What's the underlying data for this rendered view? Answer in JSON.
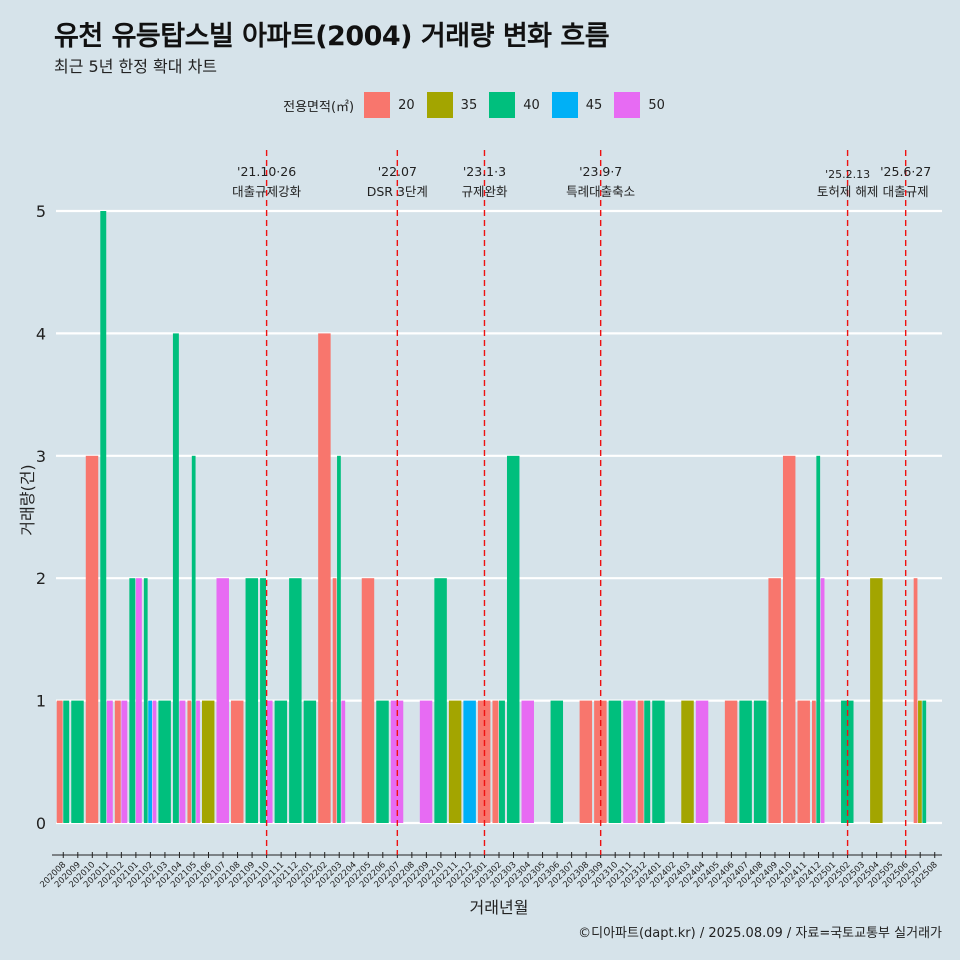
{
  "title": "유천 유등탑스빌 아파트(2004) 거래량 변화 흐름",
  "subtitle": "최근 5년 한정 확대 차트",
  "caption": "©디아파트(dapt.kr) / 2025.08.09 / 자료=국토교통부 실거래가",
  "legend": {
    "title": "전용면적(㎡)",
    "items": [
      {
        "label": "20",
        "color": "#f8766d"
      },
      {
        "label": "35",
        "color": "#a3a500"
      },
      {
        "label": "40",
        "color": "#00bf7d"
      },
      {
        "label": "45",
        "color": "#00b0f6"
      },
      {
        "label": "50",
        "color": "#e76bf3"
      }
    ]
  },
  "chart_data": {
    "type": "bar",
    "xlabel": "거래년월",
    "ylabel": "거래량(건)",
    "ylim": [
      0,
      5
    ],
    "yticks": [
      0,
      1,
      2,
      3,
      4,
      5
    ],
    "grid": true,
    "legend_position": "top",
    "categories": [
      "202008",
      "202009",
      "202010",
      "202011",
      "202012",
      "202101",
      "202102",
      "202103",
      "202104",
      "202105",
      "202106",
      "202107",
      "202108",
      "202109",
      "202110",
      "202111",
      "202112",
      "202201",
      "202202",
      "202203",
      "202204",
      "202205",
      "202206",
      "202207",
      "202208",
      "202209",
      "202210",
      "202211",
      "202212",
      "202301",
      "202302",
      "202303",
      "202304",
      "202305",
      "202306",
      "202307",
      "202308",
      "202309",
      "202310",
      "202311",
      "202312",
      "202401",
      "202402",
      "202403",
      "202404",
      "202405",
      "202406",
      "202407",
      "202408",
      "202409",
      "202410",
      "202411",
      "202412",
      "202501",
      "202502",
      "202503",
      "202504",
      "202505",
      "202506",
      "202507",
      "202508"
    ],
    "series": [
      {
        "name": "20",
        "color": "#f8766d",
        "values": {
          "202008": 1,
          "202010": 3,
          "202012": 1,
          "202105": 1,
          "202108": 1,
          "202202": 4,
          "202203": 2,
          "202205": 2,
          "202301": 1,
          "202302": 1,
          "202308": 1,
          "202309": 1,
          "202312": 1,
          "202406": 1,
          "202409": 2,
          "202410": 3,
          "202411": 1,
          "202412": 1,
          "202507": 2
        }
      },
      {
        "name": "35",
        "color": "#a3a500",
        "values": {
          "202106": 1,
          "202211": 1,
          "202403": 1,
          "202504": 2,
          "202507": 1
        }
      },
      {
        "name": "40",
        "color": "#00bf7d",
        "values": {
          "202008": 1,
          "202009": 1,
          "202011": 5,
          "202101": 2,
          "202102": 2,
          "202103": 1,
          "202104": 4,
          "202105": 3,
          "202109": 2,
          "202110": 2,
          "202111": 1,
          "202112": 2,
          "202201": 1,
          "202203": 3,
          "202206": 1,
          "202210": 2,
          "202302": 1,
          "202303": 3,
          "202306": 1,
          "202310": 1,
          "202312": 1,
          "202401": 1,
          "202407": 1,
          "202408": 1,
          "202412": 3,
          "202502": 1,
          "202507": 1
        }
      },
      {
        "name": "45",
        "color": "#00b0f6",
        "values": {
          "202102": 1,
          "202212": 1
        }
      },
      {
        "name": "50",
        "color": "#e76bf3",
        "values": {
          "202011": 1,
          "202012": 1,
          "202101": 2,
          "202102": 1,
          "202104": 1,
          "202105": 1,
          "202107": 2,
          "202110": 1,
          "202203": 1,
          "202207": 1,
          "202209": 1,
          "202304": 1,
          "202311": 1,
          "202404": 1,
          "202412": 2
        }
      }
    ],
    "annotations": [
      {
        "x": "202110",
        "date": "'21.10·26",
        "text": "대출규제강화"
      },
      {
        "x": "202207",
        "date": "'22.07",
        "text": "DSR 3단계"
      },
      {
        "x": "202301",
        "date": "'23.1·3",
        "text": "규제완화"
      },
      {
        "x": "202309",
        "date": "'23.9·7",
        "text": "특례대출축소"
      },
      {
        "x": "202502",
        "date": "'25.2.13",
        "text": "토허제 해제"
      },
      {
        "x": "202506",
        "date": "'25.6·27",
        "text": "대출규제"
      }
    ]
  }
}
